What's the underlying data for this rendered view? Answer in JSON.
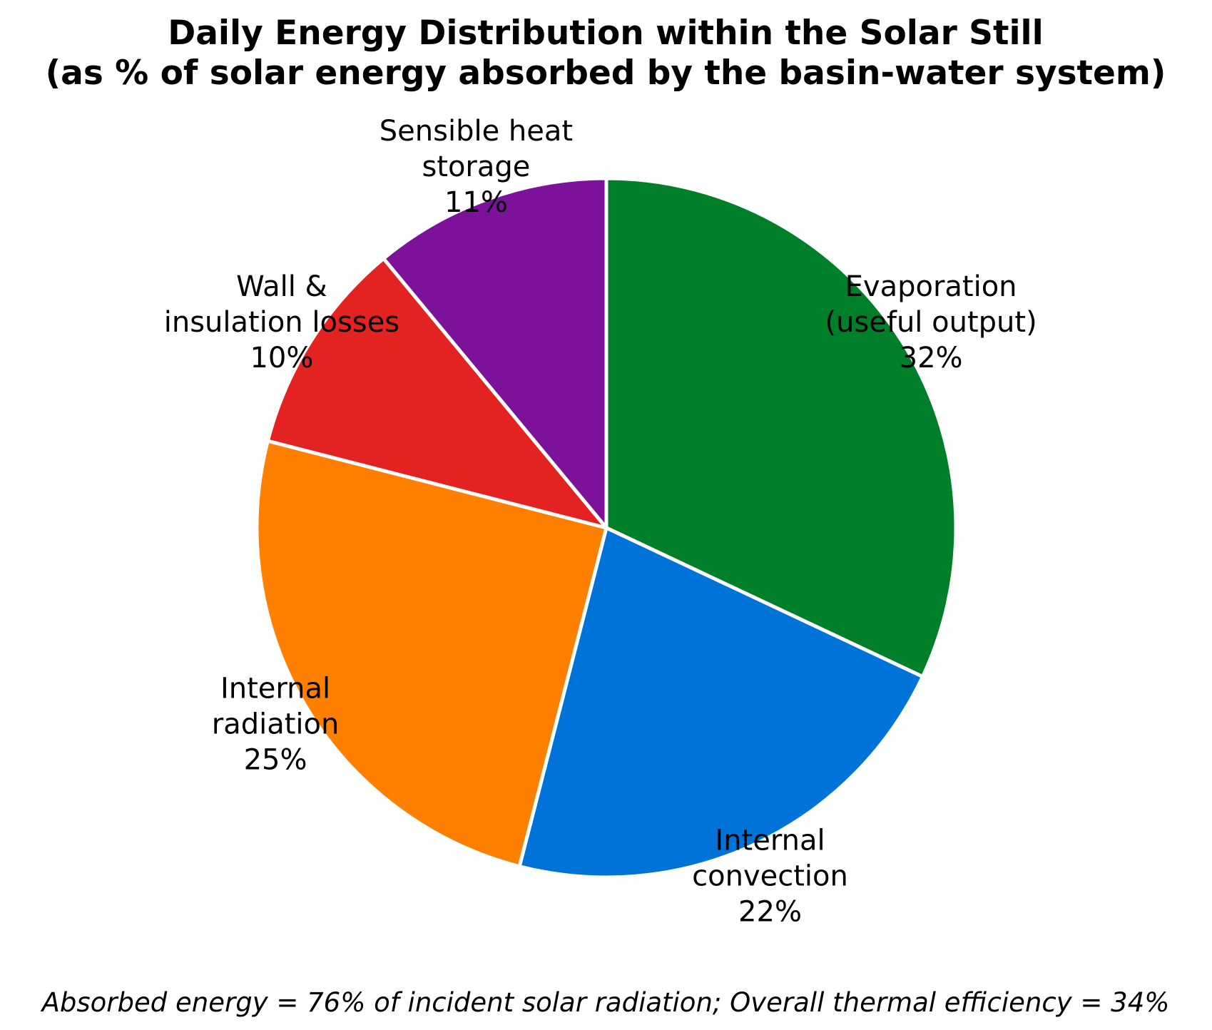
{
  "chart_data": {
    "type": "pie",
    "title": "Daily Energy Distribution within the Solar Still",
    "subtitle": "(as % of solar energy absorbed by the basin-water system)",
    "start_angle_deg": 90,
    "direction": "clockwise",
    "slices": [
      {
        "label_lines": [
          "Evaporation",
          "(useful output)"
        ],
        "pct_text": "32%",
        "value": 32,
        "color": "#007f2a"
      },
      {
        "label_lines": [
          "Internal",
          "convection"
        ],
        "pct_text": "22%",
        "value": 22,
        "color": "#0073d8"
      },
      {
        "label_lines": [
          "Internal",
          "radiation"
        ],
        "pct_text": "25%",
        "value": 25,
        "color": "#ff7f00"
      },
      {
        "label_lines": [
          "Wall &",
          "insulation losses"
        ],
        "pct_text": "10%",
        "value": 10,
        "color": "#e32222"
      },
      {
        "label_lines": [
          "Sensible heat",
          "storage"
        ],
        "pct_text": "11%",
        "value": 11,
        "color": "#7b1299"
      }
    ],
    "footnote": "Absorbed energy = 76% of incident solar radiation;  Overall thermal efficiency = 34%"
  }
}
